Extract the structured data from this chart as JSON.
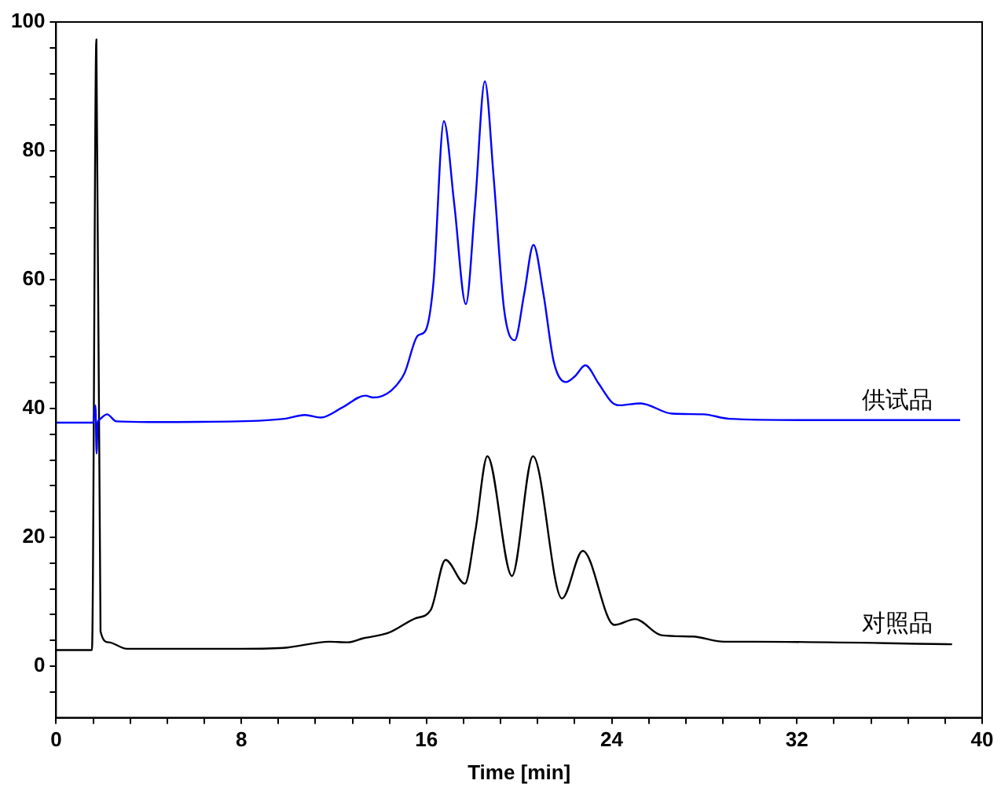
{
  "chart_data": {
    "type": "line",
    "xlabel": "Time [min]",
    "xlim": [
      0,
      40
    ],
    "ylim": [
      -8,
      100
    ],
    "xticks": [
      0,
      {
        "value": 1.6,
        "label": null
      },
      {
        "value": 3.2,
        "label": null
      },
      {
        "value": 4.8,
        "label": null
      },
      {
        "value": 6.4,
        "label": null
      },
      8,
      {
        "value": 9.6,
        "label": null
      },
      {
        "value": 11.2,
        "label": null
      },
      {
        "value": 12.8,
        "label": null
      },
      {
        "value": 14.4,
        "label": null
      },
      16,
      {
        "value": 17.6,
        "label": null
      },
      {
        "value": 19.2,
        "label": null
      },
      {
        "value": 20.8,
        "label": null
      },
      {
        "value": 22.4,
        "label": null
      },
      24,
      {
        "value": 25.6,
        "label": null
      },
      {
        "value": 27.2,
        "label": null
      },
      {
        "value": 28.8,
        "label": null
      },
      {
        "value": 30.4,
        "label": null
      },
      32,
      {
        "value": 33.6,
        "label": null
      },
      {
        "value": 35.2,
        "label": null
      },
      {
        "value": 36.8,
        "label": null
      },
      {
        "value": 38.4,
        "label": null
      },
      40
    ],
    "yticks": [
      {
        "value": -4,
        "label": null
      },
      0,
      {
        "value": 4,
        "label": null
      },
      {
        "value": 8,
        "label": null
      },
      {
        "value": 12,
        "label": null
      },
      {
        "value": 16,
        "label": null
      },
      20,
      {
        "value": 24,
        "label": null
      },
      {
        "value": 28,
        "label": null
      },
      {
        "value": 32,
        "label": null
      },
      {
        "value": 36,
        "label": null
      },
      40,
      {
        "value": 44,
        "label": null
      },
      {
        "value": 48,
        "label": null
      },
      {
        "value": 52,
        "label": null
      },
      {
        "value": 56,
        "label": null
      },
      60,
      {
        "value": 64,
        "label": null
      },
      {
        "value": 68,
        "label": null
      },
      {
        "value": 72,
        "label": null
      },
      {
        "value": 76,
        "label": null
      },
      80,
      {
        "value": 84,
        "label": null
      },
      {
        "value": 88,
        "label": null
      },
      {
        "value": 92,
        "label": null
      },
      {
        "value": 96,
        "label": null
      },
      100
    ],
    "grid": false,
    "legend": false,
    "marker": "none",
    "line_style": "solid",
    "series": [
      {
        "color": "#0000ff",
        "x": [
          0,
          1.6,
          1.7,
          1.75,
          1.8,
          1.85,
          2.2,
          2.6,
          4,
          7.8,
          9.85,
          10.75,
          11.43,
          12.34,
          13.36,
          13.7,
          14.48,
          15.05,
          15.62,
          15.96,
          16.3,
          16.75,
          17.2,
          17.7,
          18.1,
          18.52,
          18.9,
          19.35,
          19.81,
          20.22,
          20.62,
          21.05,
          21.5,
          22.03,
          22.41,
          22.86,
          23.43,
          24.0,
          24.33,
          25.24,
          26.6,
          27.96,
          29.08,
          32.5,
          39.05
        ],
        "values": [
          37.8,
          37.8,
          40.5,
          33,
          37.8,
          38.2,
          39.1,
          38,
          37.9,
          38.0,
          38.4,
          39.0,
          38.6,
          40.1,
          42.0,
          41.7,
          42.8,
          45.5,
          51.3,
          52.1,
          59.5,
          84.6,
          71.7,
          56.2,
          71.7,
          90.8,
          75.9,
          55.4,
          50.6,
          57.8,
          65.4,
          57.8,
          47.2,
          44.1,
          45.0,
          46.7,
          43.9,
          41.0,
          40.5,
          40.8,
          39.2,
          39.1,
          38.4,
          38.2,
          38.2
        ]
      },
      {
        "color": "#000000",
        "x": [
          0,
          1.55,
          1.74,
          1.92,
          2.27,
          3.06,
          8,
          10,
          11.8,
          12.6,
          13.24,
          14.37,
          15.5,
          16.18,
          16.82,
          17.66,
          18.11,
          18.63,
          19.69,
          20.6,
          21.85,
          22.75,
          24.11,
          25.01,
          26.15,
          27.5,
          28.86,
          30.2,
          38.7
        ],
        "values": [
          2.5,
          2.5,
          97.3,
          5.4,
          3.7,
          2.7,
          2.7,
          2.9,
          3.8,
          3.7,
          4.3,
          5.2,
          7.4,
          8.7,
          16.5,
          12.8,
          21.0,
          32.6,
          14.0,
          32.6,
          10.5,
          17.9,
          6.4,
          7.3,
          4.8,
          4.6,
          3.8,
          3.8,
          3.4
        ]
      }
    ],
    "annotations": [
      {
        "text": "供试品",
        "x": 34.8,
        "y": 39.2
      },
      {
        "text": "对照品",
        "x": 34.8,
        "y": 4.6
      }
    ]
  }
}
